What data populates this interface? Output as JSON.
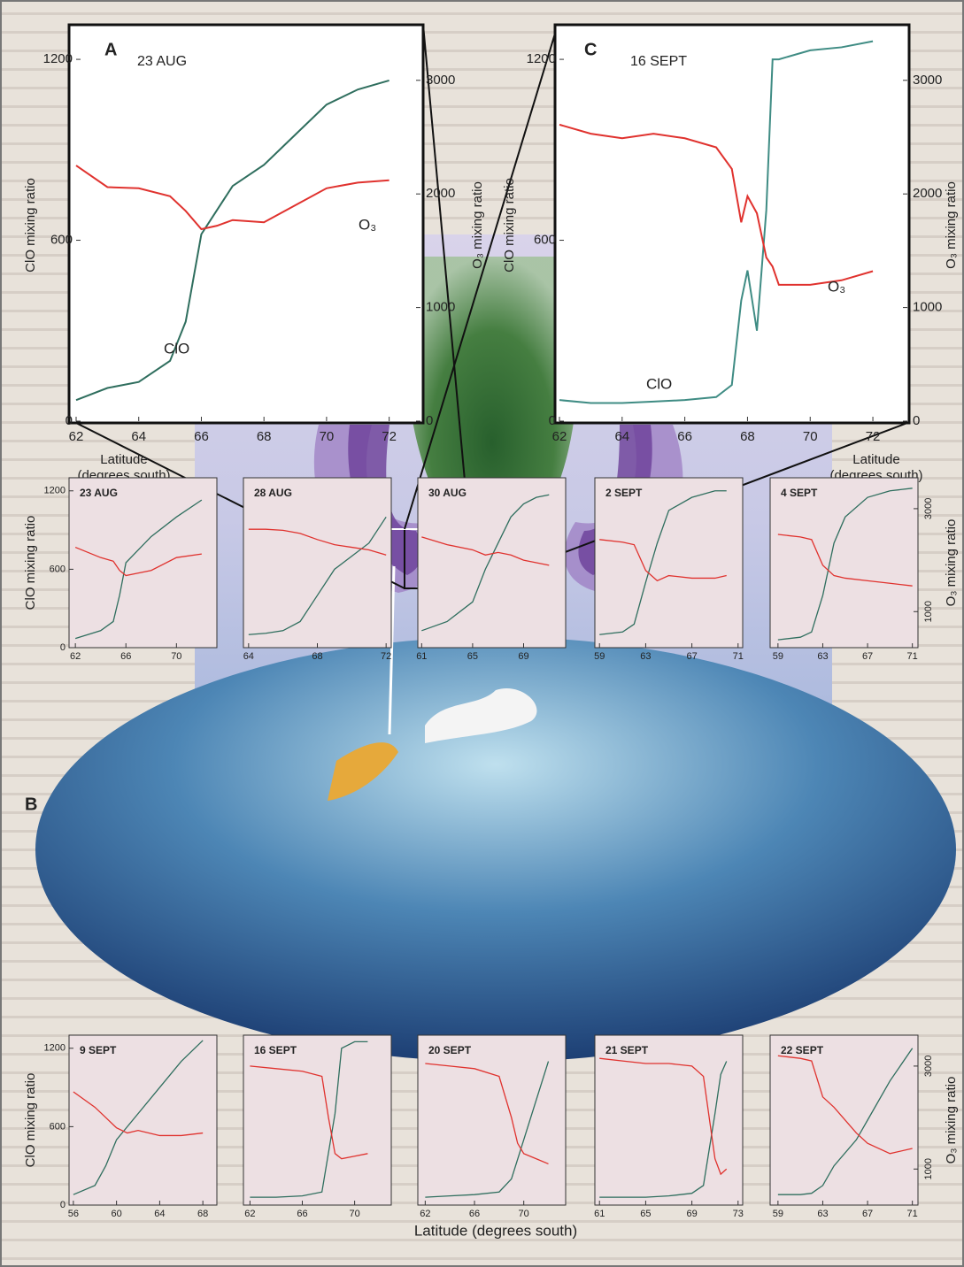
{
  "chart_data": [
    {
      "type": "line",
      "panel": "A",
      "title": "23 AUG",
      "ylabel": "ClO mixing ratio",
      "y2label": "O₃ mixing ratio",
      "xlabel": [
        "Latitude",
        "(degrees south)"
      ],
      "xlim": [
        62,
        73
      ],
      "xticks": [
        62,
        64,
        66,
        68,
        70,
        72
      ],
      "ylim": [
        0,
        1300
      ],
      "yticks": [
        0,
        600,
        1200
      ],
      "y2lim": [
        0,
        3450
      ],
      "y2ticks": [
        0,
        1000,
        2000,
        3000
      ],
      "x": [
        62,
        63,
        64,
        65,
        65.5,
        66,
        66.5,
        67,
        68,
        69,
        70,
        71,
        72
      ],
      "series": [
        {
          "name": "ClO",
          "color": "#2f6e5e",
          "values": [
            70,
            110,
            130,
            200,
            330,
            620,
            700,
            780,
            850,
            950,
            1050,
            1100,
            1130
          ]
        },
        {
          "name": "O₃",
          "color": "#e0322e",
          "axis": "y2",
          "values": [
            2250,
            2060,
            2050,
            1980,
            1850,
            1690,
            1720,
            1770,
            1750,
            1900,
            2050,
            2100,
            2120
          ]
        }
      ]
    },
    {
      "type": "line",
      "panel": "C",
      "title": "16 SEPT",
      "ylabel": "ClO mixing ratio",
      "y2label": "O₃ mixing ratio",
      "xlabel": [
        "Latitude",
        "(degrees south)"
      ],
      "xlim": [
        62,
        73.1
      ],
      "xticks": [
        62,
        64,
        66,
        68,
        70,
        72
      ],
      "ylim": [
        0,
        1300
      ],
      "yticks": [
        0,
        600,
        1200
      ],
      "y2lim": [
        0,
        3450
      ],
      "y2ticks": [
        0,
        1000,
        2000,
        3000
      ],
      "x": [
        62,
        63,
        64,
        65,
        66,
        67,
        67.5,
        67.8,
        68,
        68.3,
        68.6,
        68.8,
        69,
        70,
        71,
        72
      ],
      "series": [
        {
          "name": "ClO",
          "color": "#3f8c84",
          "values": [
            70,
            60,
            60,
            65,
            70,
            80,
            120,
            400,
            500,
            300,
            700,
            1200,
            1200,
            1230,
            1240,
            1260
          ]
        },
        {
          "name": "O₃",
          "color": "#e0322e",
          "axis": "y2",
          "values": [
            2610,
            2530,
            2490,
            2530,
            2490,
            2410,
            2220,
            1750,
            1980,
            1830,
            1440,
            1360,
            1200,
            1200,
            1240,
            1320
          ]
        }
      ]
    },
    {
      "type": "line",
      "title": "23 AUG",
      "ylabel": "ClO mixing ratio",
      "xlim": [
        61.5,
        73.2
      ],
      "xticks": [
        62,
        66,
        70
      ],
      "ylim": [
        0,
        1300
      ],
      "yticks": [
        0,
        600,
        1200
      ],
      "y2lim": [
        300,
        3600
      ],
      "x": [
        62,
        64,
        65,
        65.5,
        66,
        67,
        68,
        70,
        72
      ],
      "series": [
        {
          "color": "#2f6e5e",
          "values": [
            70,
            130,
            200,
            400,
            650,
            750,
            850,
            1000,
            1130
          ]
        },
        {
          "color": "#e0322e",
          "axis": "y2",
          "values": [
            2250,
            2050,
            1980,
            1800,
            1700,
            1750,
            1800,
            2050,
            2120
          ]
        }
      ]
    },
    {
      "type": "line",
      "title": "28 AUG",
      "xlim": [
        63.7,
        72.3
      ],
      "xticks": [
        64,
        68,
        72
      ],
      "ylim": [
        0,
        1300
      ],
      "y2lim": [
        300,
        3600
      ],
      "x": [
        64,
        65,
        66,
        67,
        68,
        69,
        70,
        71,
        72
      ],
      "series": [
        {
          "color": "#2f6e5e",
          "values": [
            100,
            110,
            130,
            200,
            400,
            600,
            700,
            800,
            1000
          ]
        },
        {
          "color": "#e0322e",
          "axis": "y2",
          "values": [
            2600,
            2600,
            2580,
            2520,
            2400,
            2300,
            2250,
            2200,
            2100
          ]
        }
      ]
    },
    {
      "type": "line",
      "title": "30 AUG",
      "xlim": [
        60.7,
        72.3
      ],
      "xticks": [
        61,
        65,
        69
      ],
      "ylim": [
        0,
        1300
      ],
      "y2lim": [
        300,
        3600
      ],
      "x": [
        61,
        63,
        65,
        66,
        67,
        68,
        69,
        70,
        71
      ],
      "series": [
        {
          "color": "#2f6e5e",
          "values": [
            130,
            200,
            350,
            600,
            800,
            1000,
            1100,
            1150,
            1170
          ]
        },
        {
          "color": "#e0322e",
          "axis": "y2",
          "values": [
            2450,
            2300,
            2200,
            2100,
            2150,
            2100,
            2000,
            1950,
            1900
          ]
        }
      ]
    },
    {
      "type": "line",
      "title": "2 SEPT",
      "xlim": [
        58.6,
        71.4
      ],
      "xticks": [
        59,
        63,
        67,
        71
      ],
      "ylim": [
        0,
        1300
      ],
      "y2lim": [
        300,
        3600
      ],
      "x": [
        59,
        61,
        62,
        63,
        64,
        65,
        67,
        69,
        70
      ],
      "series": [
        {
          "color": "#2f6e5e",
          "values": [
            100,
            120,
            180,
            500,
            800,
            1050,
            1150,
            1200,
            1200
          ]
        },
        {
          "color": "#e0322e",
          "axis": "y2",
          "values": [
            2400,
            2350,
            2300,
            1800,
            1600,
            1700,
            1650,
            1650,
            1700
          ]
        }
      ]
    },
    {
      "type": "line",
      "title": "4 SEPT",
      "y2label": "O₃ mixing ratio",
      "xlim": [
        58.3,
        71.5
      ],
      "xticks": [
        59,
        63,
        67,
        71
      ],
      "ylim": [
        0,
        1300
      ],
      "y2lim": [
        300,
        3600
      ],
      "y2ticks": [
        1000,
        3000
      ],
      "x": [
        59,
        61,
        62,
        63,
        64,
        65,
        67,
        69,
        71
      ],
      "series": [
        {
          "color": "#2f6e5e",
          "values": [
            60,
            80,
            120,
            400,
            800,
            1000,
            1150,
            1200,
            1220
          ]
        },
        {
          "color": "#e0322e",
          "axis": "y2",
          "values": [
            2500,
            2450,
            2400,
            1900,
            1700,
            1650,
            1600,
            1550,
            1500
          ]
        }
      ]
    },
    {
      "type": "line",
      "title": "9 SEPT",
      "ylabel": "ClO mixing ratio",
      "xlim": [
        55.6,
        69.3
      ],
      "xticks": [
        56,
        60,
        64,
        68
      ],
      "ylim": [
        0,
        1300
      ],
      "yticks": [
        0,
        600,
        1200
      ],
      "y2lim": [
        300,
        3600
      ],
      "x": [
        56,
        58,
        59,
        60,
        61,
        62,
        64,
        66,
        68
      ],
      "series": [
        {
          "color": "#2f6e5e",
          "values": [
            80,
            150,
            300,
            500,
            600,
            700,
            900,
            1100,
            1260
          ]
        },
        {
          "color": "#e0322e",
          "axis": "y2",
          "values": [
            2500,
            2200,
            2000,
            1800,
            1700,
            1750,
            1650,
            1650,
            1700
          ]
        }
      ]
    },
    {
      "type": "line",
      "title": "16 SEPT",
      "xlim": [
        61.5,
        72.8
      ],
      "xticks": [
        62,
        66,
        70
      ],
      "ylim": [
        0,
        1300
      ],
      "y2lim": [
        300,
        3600
      ],
      "x": [
        62,
        64,
        66,
        67.5,
        68,
        68.5,
        69,
        70,
        71
      ],
      "series": [
        {
          "color": "#2f6e5e",
          "values": [
            60,
            60,
            70,
            100,
            400,
            700,
            1200,
            1250,
            1250
          ]
        },
        {
          "color": "#e0322e",
          "axis": "y2",
          "values": [
            3000,
            2950,
            2900,
            2800,
            2000,
            1300,
            1200,
            1250,
            1300
          ]
        }
      ]
    },
    {
      "type": "line",
      "title": "20 SEPT",
      "xlim": [
        61.4,
        73.4
      ],
      "xticks": [
        62,
        66,
        70
      ],
      "ylim": [
        0,
        1300
      ],
      "y2lim": [
        300,
        3600
      ],
      "x": [
        62,
        64,
        66,
        68,
        69,
        69.5,
        70,
        71,
        72
      ],
      "series": [
        {
          "color": "#2f6e5e",
          "values": [
            60,
            70,
            80,
            100,
            200,
            350,
            500,
            800,
            1100
          ]
        },
        {
          "color": "#e0322e",
          "axis": "y2",
          "values": [
            3050,
            3000,
            2950,
            2800,
            2000,
            1500,
            1300,
            1200,
            1100
          ]
        }
      ]
    },
    {
      "type": "line",
      "title": "21 SEPT",
      "xlim": [
        60.6,
        73.4
      ],
      "xticks": [
        61,
        65,
        69,
        73
      ],
      "ylim": [
        0,
        1300
      ],
      "y2lim": [
        300,
        3600
      ],
      "x": [
        61,
        63,
        65,
        67,
        69,
        70,
        71,
        71.5,
        72
      ],
      "series": [
        {
          "color": "#2f6e5e",
          "values": [
            60,
            60,
            60,
            70,
            90,
            150,
            700,
            1000,
            1100
          ]
        },
        {
          "color": "#e0322e",
          "axis": "y2",
          "values": [
            3150,
            3100,
            3050,
            3050,
            3000,
            2800,
            1200,
            900,
            1000
          ]
        }
      ]
    },
    {
      "type": "line",
      "title": "22 SEPT",
      "y2label": "O₃ mixing ratio",
      "xlim": [
        58.3,
        71.5
      ],
      "xticks": [
        59,
        63,
        67,
        71
      ],
      "ylim": [
        0,
        1300
      ],
      "y2lim": [
        300,
        3600
      ],
      "y2ticks": [
        1000,
        3000
      ],
      "x": [
        59,
        61,
        62,
        63,
        64,
        66,
        67,
        69,
        71
      ],
      "series": [
        {
          "color": "#2f6e5e",
          "values": [
            80,
            80,
            90,
            150,
            300,
            500,
            650,
            950,
            1200
          ]
        },
        {
          "color": "#e0322e",
          "axis": "y2",
          "values": [
            3200,
            3150,
            3100,
            2400,
            2200,
            1700,
            1500,
            1300,
            1400
          ]
        }
      ]
    }
  ],
  "figure": {
    "panel_b": "B",
    "b_xlabel": "Latitude  (degrees south)"
  }
}
